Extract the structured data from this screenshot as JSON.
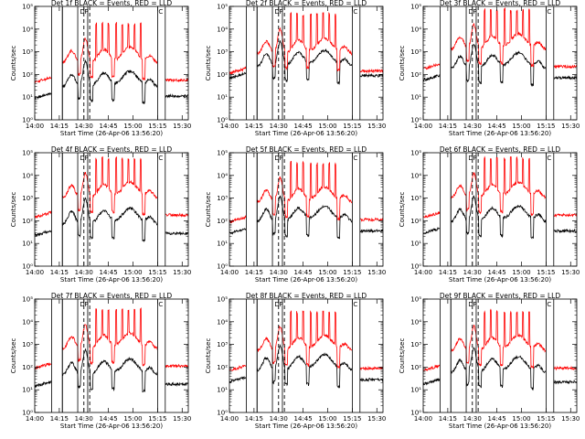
{
  "chart_data": [
    {
      "type": "line",
      "title": "Det 1f BLACK = Events, RED = LLD",
      "detector": "1f",
      "xlabel": "Start Time (26-Apr-06 13:56:20)",
      "ylabel": "Counts/sec",
      "xlim": [
        0,
        100
      ],
      "ylim_log10": [
        0,
        5
      ],
      "x_tick_labels": [
        "14:00",
        "14:15",
        "14:30",
        "14:45",
        "15:00",
        "15:15",
        "15:30"
      ],
      "y_tick_labels": [
        "10⁰",
        "10¹",
        "10²",
        "10³",
        "10⁴",
        "10⁵"
      ],
      "red_base_log10": 1.8,
      "black_base_log10": 1.1,
      "legend": "Det 1f BLACK = Events, RED = LLD",
      "series": [
        {
          "name": "Events",
          "color": "#000000"
        },
        {
          "name": "LLD",
          "color": "#ff0000"
        }
      ]
    },
    {
      "type": "line",
      "title": "Det 2f BLACK = Events, RED = LLD",
      "detector": "2f",
      "xlabel": "Start Time (26-Apr-06 13:56:20)",
      "ylabel": "Counts/sec",
      "xlim": [
        0,
        100
      ],
      "ylim_log10": [
        0,
        5
      ],
      "x_tick_labels": [
        "14:00",
        "14:15",
        "14:30",
        "14:45",
        "15:00",
        "15:15",
        "15:30"
      ],
      "y_tick_labels": [
        "10⁰",
        "10¹",
        "10²",
        "10³",
        "10⁴",
        "10⁵"
      ],
      "red_base_log10": 2.2,
      "black_base_log10": 2.0,
      "series": [
        {
          "name": "Events",
          "color": "#000000"
        },
        {
          "name": "LLD",
          "color": "#ff0000"
        }
      ]
    },
    {
      "type": "line",
      "title": "Det 3f BLACK = Events, RED = LLD",
      "detector": "3f",
      "xlabel": "Start Time (26-Apr-06 13:56:20)",
      "ylabel": "Counts/sec",
      "xlim": [
        0,
        100
      ],
      "ylim_log10": [
        0,
        5
      ],
      "x_tick_labels": [
        "14:00",
        "14:15",
        "14:30",
        "14:45",
        "15:00",
        "15:15",
        "15:30"
      ],
      "y_tick_labels": [
        "10⁰",
        "10¹",
        "10²",
        "10³",
        "10⁴",
        "10⁵"
      ],
      "red_base_log10": 2.4,
      "black_base_log10": 1.9,
      "series": [
        {
          "name": "Events",
          "color": "#000000"
        },
        {
          "name": "LLD",
          "color": "#ff0000"
        }
      ]
    },
    {
      "type": "line",
      "title": "Det 4f BLACK = Events, RED = LLD",
      "detector": "4f",
      "xlabel": "Start Time (26-Apr-06 13:56:20)",
      "ylabel": "Counts/sec",
      "xlim": [
        0,
        100
      ],
      "ylim_log10": [
        0,
        5
      ],
      "x_tick_labels": [
        "14:00",
        "14:15",
        "14:30",
        "14:45",
        "15:00",
        "15:15",
        "15:30"
      ],
      "y_tick_labels": [
        "10⁰",
        "10¹",
        "10²",
        "10³",
        "10⁴",
        "10⁵"
      ],
      "red_base_log10": 2.3,
      "black_base_log10": 1.5,
      "series": [
        {
          "name": "Events",
          "color": "#000000"
        },
        {
          "name": "LLD",
          "color": "#ff0000"
        }
      ]
    },
    {
      "type": "line",
      "title": "Det 5f BLACK = Events, RED = LLD",
      "detector": "5f",
      "xlabel": "Start Time (26-Apr-06 13:56:20)",
      "ylabel": "Counts/sec",
      "xlim": [
        0,
        100
      ],
      "ylim_log10": [
        0,
        5
      ],
      "x_tick_labels": [
        "14:00",
        "14:15",
        "14:30",
        "14:45",
        "15:00",
        "15:15",
        "15:30"
      ],
      "y_tick_labels": [
        "10⁰",
        "10¹",
        "10²",
        "10³",
        "10⁴",
        "10⁵"
      ],
      "red_base_log10": 2.1,
      "black_base_log10": 1.6,
      "series": [
        {
          "name": "Events",
          "color": "#000000"
        },
        {
          "name": "LLD",
          "color": "#ff0000"
        }
      ]
    },
    {
      "type": "line",
      "title": "Det 6f BLACK = Events, RED = LLD",
      "detector": "6f",
      "xlabel": "Start Time (26-Apr-06 13:56:20)",
      "ylabel": "Counts/sec",
      "xlim": [
        0,
        100
      ],
      "ylim_log10": [
        0,
        5
      ],
      "x_tick_labels": [
        "14:00",
        "14:15",
        "14:30",
        "14:45",
        "15:00",
        "15:15",
        "15:30"
      ],
      "y_tick_labels": [
        "10⁰",
        "10¹",
        "10²",
        "10³",
        "10⁴",
        "10⁵"
      ],
      "red_base_log10": 2.3,
      "black_base_log10": 1.6,
      "series": [
        {
          "name": "Events",
          "color": "#000000"
        },
        {
          "name": "LLD",
          "color": "#ff0000"
        }
      ]
    },
    {
      "type": "line",
      "title": "Det 7f BLACK = Events, RED = LLD",
      "detector": "7f",
      "xlabel": "Start Time (26-Apr-06 13:56:20)",
      "ylabel": "Counts/sec",
      "xlim": [
        0,
        100
      ],
      "ylim_log10": [
        0,
        5
      ],
      "x_tick_labels": [
        "14:00",
        "14:15",
        "14:30",
        "14:45",
        "15:00",
        "15:15",
        "15:30"
      ],
      "y_tick_labels": [
        "10⁰",
        "10¹",
        "10²",
        "10³",
        "10⁴",
        "10⁵"
      ],
      "red_base_log10": 2.1,
      "black_base_log10": 1.3,
      "series": [
        {
          "name": "Events",
          "color": "#000000"
        },
        {
          "name": "LLD",
          "color": "#ff0000"
        }
      ]
    },
    {
      "type": "line",
      "title": "Det 8f BLACK = Events, RED = LLD",
      "detector": "8f",
      "xlabel": "Start Time (26-Apr-06 13:56:20)",
      "ylabel": "Counts/sec",
      "xlim": [
        0,
        100
      ],
      "ylim_log10": [
        0,
        5
      ],
      "x_tick_labels": [
        "14:00",
        "14:15",
        "14:30",
        "14:45",
        "15:00",
        "15:15",
        "15:30"
      ],
      "y_tick_labels": [
        "10⁰",
        "10¹",
        "10²",
        "10³",
        "10⁴",
        "10⁵"
      ],
      "red_base_log10": 2.0,
      "black_base_log10": 1.5,
      "series": [
        {
          "name": "Events",
          "color": "#000000"
        },
        {
          "name": "LLD",
          "color": "#ff0000"
        }
      ]
    },
    {
      "type": "line",
      "title": "Det 9f BLACK = Events, RED = LLD",
      "detector": "9f",
      "xlabel": "Start Time (26-Apr-06 13:56:20)",
      "ylabel": "Counts/sec",
      "xlim": [
        0,
        100
      ],
      "ylim_log10": [
        0,
        5
      ],
      "x_tick_labels": [
        "14:00",
        "14:15",
        "14:30",
        "14:45",
        "15:00",
        "15:15",
        "15:30"
      ],
      "y_tick_labels": [
        "10⁰",
        "10¹",
        "10²",
        "10³",
        "10⁴",
        "10⁵"
      ],
      "red_base_log10": 2.0,
      "black_base_log10": 1.4,
      "series": [
        {
          "name": "Events",
          "color": "#000000"
        },
        {
          "name": "LLD",
          "color": "#ff0000"
        }
      ]
    }
  ],
  "markers": {
    "solid_x": [
      18,
      28,
      34.5
    ],
    "dashed_x": [
      32,
      35.8
    ],
    "gap_regions": [
      [
        11,
        18
      ],
      [
        80,
        85
      ]
    ],
    "letters": [
      {
        "x": 31,
        "label": "D"
      },
      {
        "x": 33.6,
        "label": "P"
      },
      {
        "x": 82,
        "label": "C"
      }
    ]
  },
  "colors": {
    "events": "#000000",
    "lld": "#ff0000",
    "axes": "#000000"
  }
}
